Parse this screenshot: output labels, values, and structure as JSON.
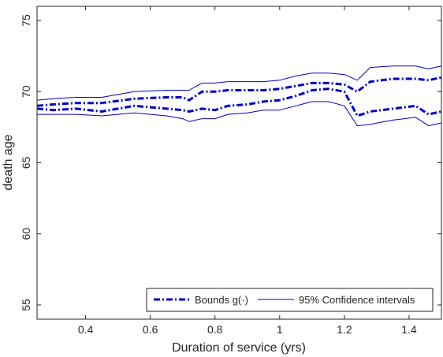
{
  "chart_data": {
    "type": "line",
    "title": "",
    "xlabel": "Duration of service (yrs)",
    "ylabel": "death age",
    "xlim": [
      0.25,
      1.5
    ],
    "ylim": [
      54,
      76
    ],
    "xticks": [
      0.4,
      0.6,
      0.8,
      1,
      1.2,
      1.4
    ],
    "xtick_labels": [
      "0.4",
      "0.6",
      "0.8",
      "1",
      "1.2",
      "1.4"
    ],
    "yticks": [
      55,
      60,
      65,
      70,
      75
    ],
    "ytick_labels": [
      "55",
      "60",
      "65",
      "70",
      "75"
    ],
    "grid": false,
    "legend_position": "bottom-right",
    "legend": [
      {
        "label": "Bounds g(·)",
        "style": "dash-dot",
        "color": "#0000cc"
      },
      {
        "label": "95% Confidence intervals",
        "style": "solid",
        "color": "#0000cc"
      }
    ],
    "series": [
      {
        "group": "bounds",
        "style": "dash-dot",
        "color": "#0000cc",
        "x": [
          0.25,
          0.3,
          0.37,
          0.45,
          0.55,
          0.65,
          0.7,
          0.72,
          0.76,
          0.8,
          0.84,
          0.9,
          0.95,
          1.0,
          1.05,
          1.1,
          1.15,
          1.2,
          1.24,
          1.28,
          1.35,
          1.42,
          1.46,
          1.5
        ],
        "y": [
          69.0,
          69.1,
          69.2,
          69.2,
          69.5,
          69.6,
          69.6,
          69.4,
          70.0,
          70.0,
          70.1,
          70.1,
          70.1,
          70.2,
          70.4,
          70.6,
          70.6,
          70.5,
          70.0,
          70.7,
          70.9,
          70.9,
          70.8,
          71.0
        ]
      },
      {
        "group": "bounds",
        "style": "dash-dot",
        "color": "#0000cc",
        "x": [
          0.25,
          0.3,
          0.37,
          0.45,
          0.55,
          0.65,
          0.7,
          0.72,
          0.76,
          0.8,
          0.84,
          0.9,
          0.95,
          1.0,
          1.05,
          1.1,
          1.15,
          1.2,
          1.24,
          1.28,
          1.35,
          1.42,
          1.46,
          1.5
        ],
        "y": [
          68.8,
          68.7,
          68.8,
          68.6,
          69.0,
          68.8,
          68.7,
          68.6,
          68.8,
          68.7,
          69.0,
          69.1,
          69.3,
          69.4,
          69.7,
          70.1,
          70.2,
          70.0,
          68.3,
          68.6,
          68.8,
          69.0,
          68.4,
          68.6
        ]
      },
      {
        "group": "ci",
        "style": "solid",
        "color": "#0000cc",
        "x": [
          0.25,
          0.3,
          0.37,
          0.45,
          0.55,
          0.65,
          0.7,
          0.72,
          0.76,
          0.8,
          0.84,
          0.9,
          0.95,
          1.0,
          1.05,
          1.1,
          1.15,
          1.2,
          1.24,
          1.28,
          1.35,
          1.42,
          1.46,
          1.5
        ],
        "y": [
          69.4,
          69.5,
          69.6,
          69.6,
          70.0,
          70.1,
          70.1,
          70.1,
          70.6,
          70.6,
          70.7,
          70.7,
          70.7,
          70.8,
          71.1,
          71.3,
          71.3,
          71.2,
          70.8,
          71.7,
          71.8,
          71.8,
          71.6,
          71.8
        ]
      },
      {
        "group": "ci",
        "style": "solid",
        "color": "#0000cc",
        "x": [
          0.25,
          0.3,
          0.37,
          0.45,
          0.55,
          0.65,
          0.7,
          0.72,
          0.76,
          0.8,
          0.84,
          0.9,
          0.95,
          1.0,
          1.05,
          1.1,
          1.15,
          1.2,
          1.24,
          1.28,
          1.35,
          1.42,
          1.46,
          1.5
        ],
        "y": [
          68.4,
          68.4,
          68.4,
          68.3,
          68.5,
          68.3,
          68.1,
          67.9,
          68.1,
          68.1,
          68.4,
          68.5,
          68.7,
          68.7,
          69.0,
          69.3,
          69.3,
          69.0,
          67.6,
          67.7,
          68.0,
          68.2,
          67.6,
          67.8
        ]
      }
    ]
  }
}
